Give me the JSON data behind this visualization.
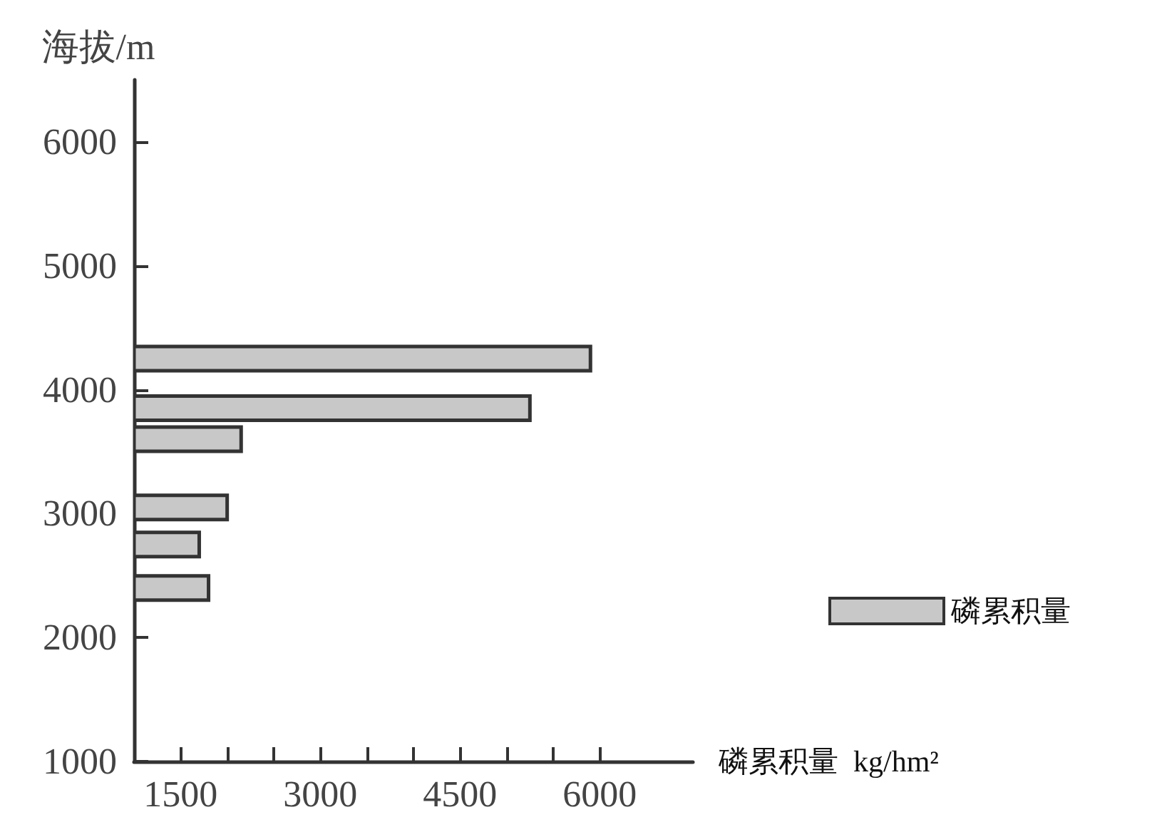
{
  "chart_data": {
    "type": "bar",
    "orientation": "horizontal",
    "xlabel": "磷累积量  kg/hm²",
    "ylabel": "海拔/m",
    "x": [
      4250,
      3850,
      3600,
      3050,
      2750,
      2400
    ],
    "series": [
      {
        "name": "磷累积量",
        "color": "#c8c8c8",
        "values": [
          5900,
          5250,
          2150,
          2000,
          1700,
          1800
        ]
      }
    ],
    "xlim": [
      1000,
      7000
    ],
    "xticks": [
      1500,
      {
        "value": 2000,
        "label": null
      },
      {
        "value": 2500,
        "label": null
      },
      3000,
      {
        "value": 3500,
        "label": null
      },
      {
        "value": 4000,
        "label": null
      },
      4500,
      {
        "value": 5000,
        "label": null
      },
      {
        "value": 5500,
        "label": null
      },
      6000
    ],
    "ylim": [
      1000,
      6500
    ],
    "yticks": [
      1000,
      2000,
      3000,
      4000,
      5000,
      6000
    ],
    "legend": "right"
  }
}
